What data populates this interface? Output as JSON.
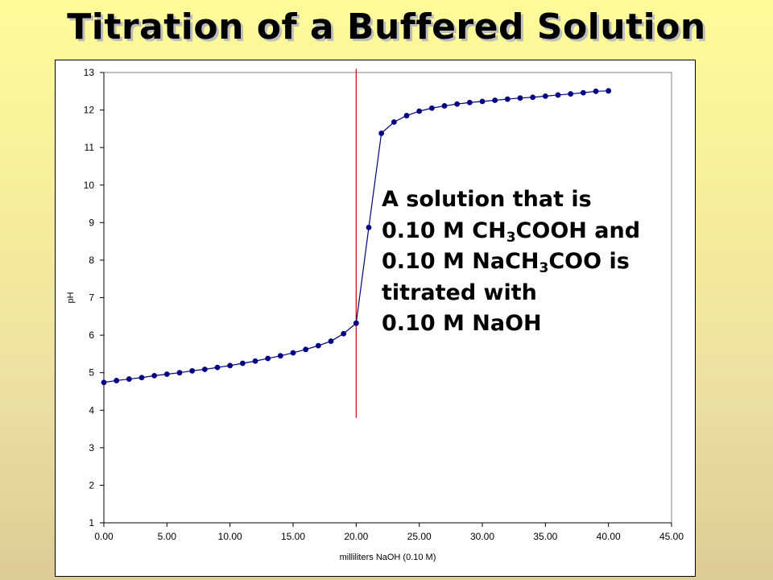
{
  "slide": {
    "title": "Titration of a Buffered Solution"
  },
  "annotation": {
    "lines": [
      [
        {
          "t": "A solution that is"
        }
      ],
      [
        {
          "t": "0.10 M CH"
        },
        {
          "sub": "3"
        },
        {
          "t": "COOH and"
        }
      ],
      [
        {
          "t": "0.10 M NaCH"
        },
        {
          "sub": "3"
        },
        {
          "t": "COO is"
        }
      ],
      [
        {
          "t": "titrated with"
        }
      ],
      [
        {
          "t": "0.10 M NaOH"
        }
      ]
    ]
  },
  "chart_data": {
    "type": "scatter",
    "title": "",
    "xlabel": "milliliters NaOH (0.10 M)",
    "ylabel": "pH",
    "xlim": [
      0,
      45
    ],
    "ylim": [
      1,
      13
    ],
    "xticks": [
      "0.00",
      "5.00",
      "10.00",
      "15.00",
      "20.00",
      "25.00",
      "30.00",
      "35.00",
      "40.00",
      "45.00"
    ],
    "yticks": [
      "1",
      "2",
      "3",
      "4",
      "5",
      "6",
      "7",
      "8",
      "9",
      "10",
      "11",
      "12",
      "13"
    ],
    "grid": false,
    "series": [
      {
        "color": "#000080",
        "marker": "circle",
        "line": true,
        "x": [
          0,
          1,
          2,
          3,
          4,
          5,
          6,
          7,
          8,
          9,
          10,
          11,
          12,
          13,
          14,
          15,
          16,
          17,
          18,
          19,
          20,
          21,
          22,
          23,
          24,
          25,
          26,
          27,
          28,
          29,
          30,
          31,
          32,
          33,
          34,
          35,
          36,
          37,
          38,
          39,
          40
        ],
        "y": [
          4.74,
          4.79,
          4.83,
          4.87,
          4.92,
          4.96,
          5.0,
          5.05,
          5.09,
          5.14,
          5.19,
          5.25,
          5.31,
          5.38,
          5.45,
          5.53,
          5.62,
          5.72,
          5.84,
          6.04,
          6.32,
          8.87,
          11.38,
          11.68,
          11.85,
          11.97,
          12.05,
          12.11,
          12.16,
          12.2,
          12.23,
          12.26,
          12.29,
          12.32,
          12.34,
          12.37,
          12.4,
          12.43,
          12.46,
          12.5,
          12.51
        ]
      }
    ],
    "reference_line": {
      "x": 20,
      "y_from": 3.8,
      "y_to": 13.1,
      "color": "#cc0000"
    }
  }
}
